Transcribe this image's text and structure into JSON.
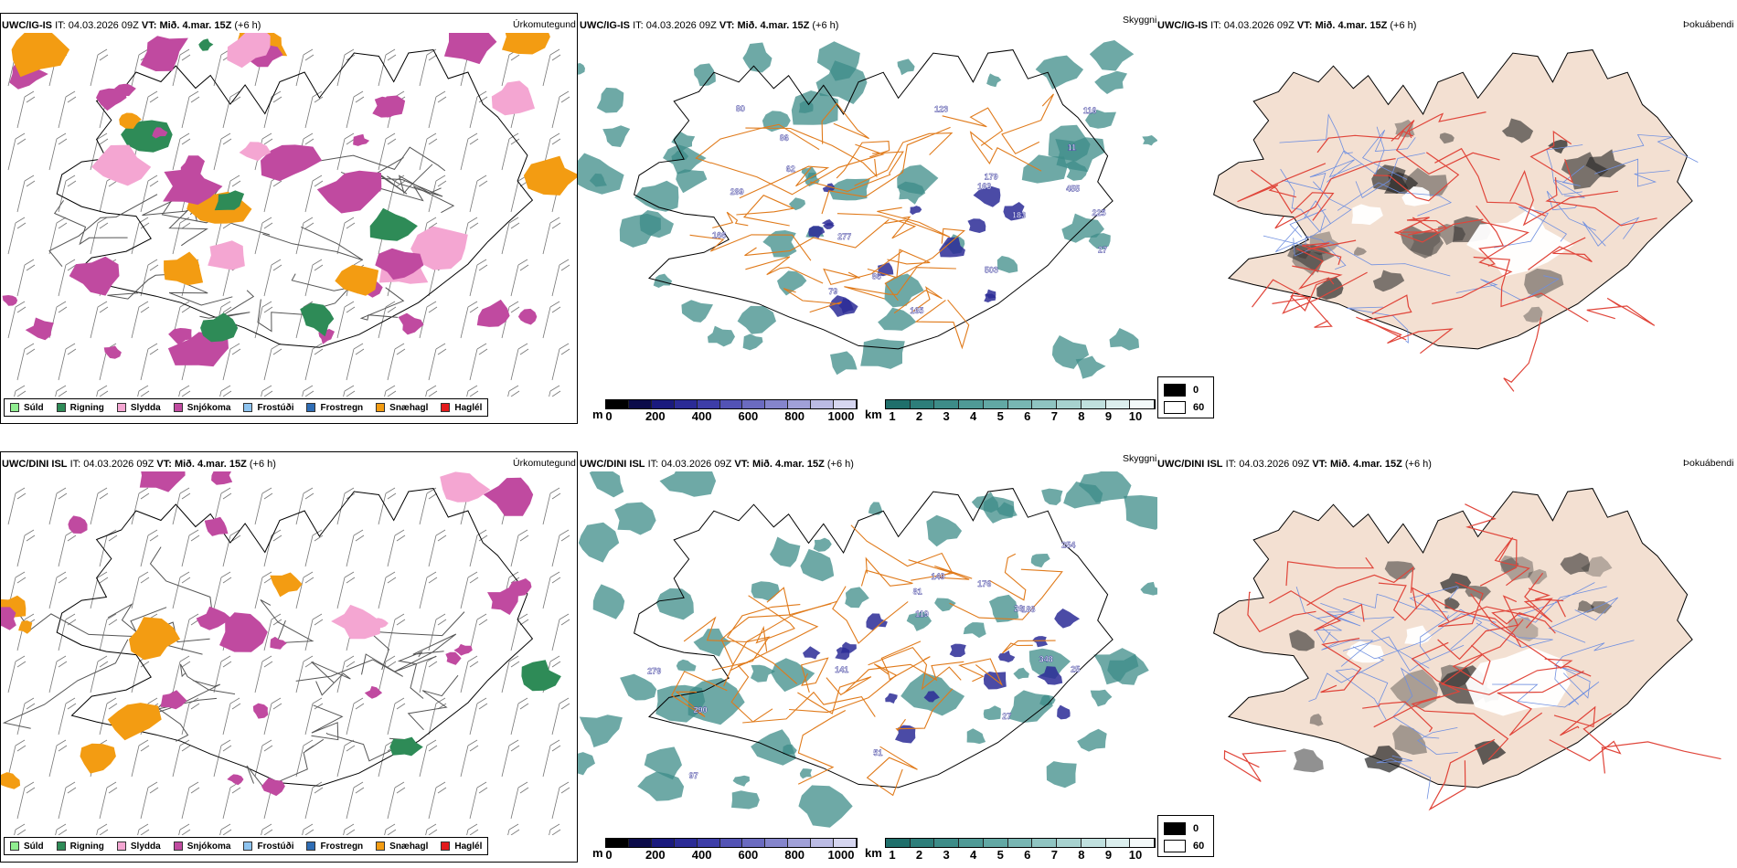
{
  "rows": [
    {
      "header": {
        "model": "UWC/IG-IS",
        "it_label": "IT:",
        "it_value": "04.03.2026 09Z",
        "vt_label": "VT:",
        "vt_value": "Mið. 4.mar. 15Z",
        "lead": "(+6 h)"
      },
      "precip_title": "Úrkomutegund",
      "cloud_title": "Skyggni",
      "fog_title": "Þokuábendi"
    },
    {
      "header": {
        "model": "UWC/DINI ISL",
        "it_label": "IT:",
        "it_value": "04.03.2026 09Z",
        "vt_label": "VT:",
        "vt_value": "Mið. 4.mar. 15Z",
        "lead": "(+6 h)"
      },
      "precip_title": "Úrkomutegund",
      "cloud_title": "Skyggni",
      "fog_title": "Þokuábendi"
    }
  ],
  "precip_legend": [
    {
      "label": "Súld",
      "color": "#90ee90"
    },
    {
      "label": "Rigning",
      "color": "#2e8b57"
    },
    {
      "label": "Slydda",
      "color": "#f4a6d2"
    },
    {
      "label": "Snjókoma",
      "color": "#c04aa0"
    },
    {
      "label": "Frostúði",
      "color": "#8ec4f0"
    },
    {
      "label": "Frostregn",
      "color": "#2f6db5"
    },
    {
      "label": "Snæhagl",
      "color": "#f39c12"
    },
    {
      "label": "Haglél",
      "color": "#e31a1c"
    }
  ],
  "ceiling_bar": {
    "unit": "m",
    "ticks": [
      "0",
      "200",
      "400",
      "600",
      "800",
      "1000"
    ],
    "colors": [
      "#000000",
      "#0b0b4a",
      "#1a1a7e",
      "#2b2b96",
      "#3d3da8",
      "#5353b5",
      "#6b6bc0",
      "#8585cc",
      "#a0a0d8",
      "#bbbbe4",
      "#d6d6f0"
    ]
  },
  "vis_bar": {
    "unit": "km",
    "ticks": [
      "1",
      "2",
      "3",
      "4",
      "5",
      "6",
      "7",
      "8",
      "9",
      "10"
    ],
    "colors": [
      "#1f6f6b",
      "#2d7e7a",
      "#3d8c88",
      "#4f9a96",
      "#62a8a4",
      "#78b6b3",
      "#8fc4c1",
      "#a7d2cf",
      "#c0e0de",
      "#dbeeed",
      "#f3f9f9"
    ]
  },
  "fog_legend": [
    {
      "label": "0",
      "color": "#000000"
    },
    {
      "label": "60",
      "color": "#ffffff"
    }
  ],
  "map_labels_top": [
    "27",
    "86",
    "165",
    "163",
    "183",
    "277",
    "123",
    "166",
    "455",
    "80",
    "503",
    "179",
    "225",
    "86",
    "79",
    "62",
    "116",
    "11",
    "289"
  ],
  "map_labels_bottom": [
    "27",
    "81",
    "97",
    "188",
    "254",
    "149",
    "176",
    "119",
    "141",
    "279",
    "290",
    "348",
    "51",
    "26",
    "25"
  ],
  "colors": {
    "road": "#e07a1a",
    "road_red": "#e0453a",
    "land_fog": "#f3e0d2",
    "river": "#6f8fe0",
    "outline": "#000000"
  }
}
